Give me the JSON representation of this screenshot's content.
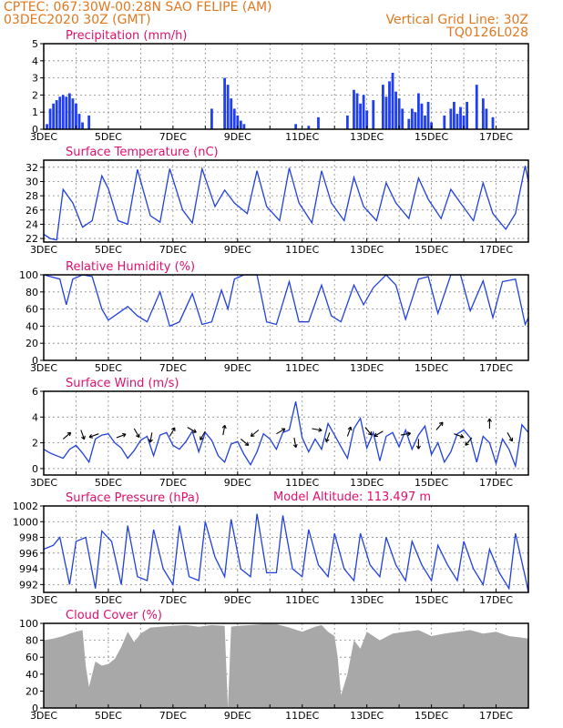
{
  "header": {
    "line1_left": "CPTEC:   067:30W-00:28N  SAO FELIPE (AM)",
    "line2_left": "03DEC2020 30Z (GMT)",
    "line1_right": "Vertical Grid Line: 30Z",
    "line2_right": "TQ0126L028"
  },
  "colors": {
    "header": "#e07820",
    "title": "#e0106e",
    "series": "#2040e0",
    "bars": "#1f3ff0",
    "cloud": "#a8a8a8"
  },
  "x_labels": [
    "3DEC",
    "5DEC",
    "7DEC",
    "9DEC",
    "11DEC",
    "13DEC",
    "15DEC",
    "17DEC"
  ],
  "extra": {
    "model_altitude": "Model Altitude: 113.497 m"
  },
  "chart_data": [
    {
      "type": "bar",
      "title": "Precipitation (mm/h)",
      "ylim": [
        0,
        5
      ],
      "yticks": [
        0,
        1,
        2,
        3,
        4,
        5
      ],
      "x": [
        3.1,
        3.2,
        3.3,
        3.4,
        3.5,
        3.6,
        3.7,
        3.8,
        3.9,
        4.0,
        4.1,
        4.2,
        4.4,
        8.2,
        8.6,
        8.7,
        8.8,
        8.9,
        9.0,
        9.1,
        9.2,
        10.8,
        11.2,
        11.5,
        12.4,
        12.6,
        12.7,
        12.8,
        12.9,
        13.0,
        13.2,
        13.5,
        13.6,
        13.7,
        13.8,
        13.9,
        14.0,
        14.1,
        14.3,
        14.4,
        14.5,
        14.6,
        14.7,
        14.8,
        14.9,
        15.0,
        15.4,
        15.6,
        15.7,
        15.8,
        15.9,
        16.0,
        16.1,
        16.4,
        16.6,
        16.7,
        16.9
      ],
      "values": [
        0.3,
        1.2,
        1.5,
        1.7,
        1.9,
        2.0,
        1.9,
        2.1,
        1.8,
        1.5,
        0.9,
        0.4,
        0.8,
        1.2,
        3.0,
        2.6,
        1.8,
        1.2,
        0.8,
        0.5,
        0.3,
        0.3,
        0.2,
        0.7,
        0.8,
        2.3,
        2.1,
        1.5,
        2.0,
        1.1,
        1.7,
        2.6,
        1.9,
        2.8,
        3.3,
        2.2,
        1.8,
        1.2,
        0.6,
        1.2,
        1.0,
        2.1,
        1.5,
        0.8,
        1.6,
        0.4,
        0.8,
        1.2,
        1.6,
        0.9,
        1.3,
        0.8,
        1.6,
        2.6,
        1.8,
        1.2,
        0.7
      ]
    },
    {
      "type": "line",
      "title": "Surface Temperature (nC)",
      "ylim": [
        21.5,
        33
      ],
      "yticks": [
        22,
        24,
        26,
        28,
        30,
        32
      ],
      "x": [
        3.0,
        3.2,
        3.4,
        3.6,
        3.9,
        4.2,
        4.5,
        4.8,
        5.0,
        5.3,
        5.6,
        5.9,
        6.3,
        6.6,
        6.9,
        7.3,
        7.6,
        7.9,
        8.3,
        8.6,
        8.9,
        9.3,
        9.6,
        9.9,
        10.3,
        10.6,
        10.9,
        11.3,
        11.6,
        11.9,
        12.3,
        12.6,
        12.9,
        13.3,
        13.6,
        13.9,
        14.3,
        14.6,
        14.9,
        15.3,
        15.6,
        15.9,
        16.3,
        16.6,
        16.9,
        17.3,
        17.6,
        17.9,
        18.0
      ],
      "values": [
        22.6,
        22.0,
        21.8,
        28.9,
        27.0,
        23.6,
        24.5,
        30.8,
        29.0,
        24.5,
        24.0,
        31.7,
        25.2,
        24.3,
        31.8,
        26.0,
        24.2,
        31.8,
        26.5,
        28.8,
        27.0,
        25.5,
        31.5,
        26.5,
        24.5,
        31.9,
        27.0,
        24.2,
        31.5,
        27.0,
        24.5,
        30.6,
        26.5,
        24.5,
        29.8,
        27.0,
        24.8,
        30.5,
        27.5,
        24.8,
        28.9,
        27.0,
        24.5,
        29.8,
        25.5,
        23.3,
        25.5,
        32.2,
        30.0
      ]
    },
    {
      "type": "line",
      "title": "Relative Humidity (%)",
      "ylim": [
        0,
        100
      ],
      "yticks": [
        0,
        20,
        40,
        60,
        80,
        100
      ],
      "x": [
        3.0,
        3.2,
        3.5,
        3.7,
        3.9,
        4.2,
        4.5,
        4.8,
        5.0,
        5.3,
        5.6,
        5.9,
        6.2,
        6.6,
        6.9,
        7.2,
        7.6,
        7.9,
        8.2,
        8.5,
        8.7,
        8.9,
        9.2,
        9.6,
        9.9,
        10.2,
        10.6,
        10.9,
        11.2,
        11.6,
        11.9,
        12.2,
        12.6,
        12.9,
        13.2,
        13.6,
        13.9,
        14.2,
        14.6,
        14.9,
        15.2,
        15.6,
        15.9,
        16.2,
        16.6,
        16.9,
        17.2,
        17.6,
        17.9,
        18.0
      ],
      "values": [
        100,
        98,
        95,
        65,
        95,
        100,
        98,
        60,
        47,
        55,
        63,
        52,
        45,
        80,
        40,
        45,
        78,
        42,
        45,
        82,
        60,
        95,
        100,
        100,
        45,
        42,
        92,
        45,
        45,
        88,
        52,
        45,
        88,
        65,
        85,
        100,
        88,
        48,
        95,
        98,
        55,
        100,
        100,
        58,
        93,
        50,
        92,
        95,
        42,
        50
      ]
    },
    {
      "type": "line",
      "title": "Surface Wind (m/s)",
      "ylim": [
        -0.5,
        6
      ],
      "yticks": [
        0,
        2,
        4,
        6
      ],
      "x": [
        3.0,
        3.2,
        3.4,
        3.6,
        3.8,
        4.0,
        4.2,
        4.4,
        4.6,
        4.8,
        5.0,
        5.2,
        5.4,
        5.6,
        5.8,
        6.0,
        6.2,
        6.4,
        6.6,
        6.8,
        7.0,
        7.2,
        7.4,
        7.6,
        7.8,
        8.0,
        8.2,
        8.4,
        8.6,
        8.8,
        9.0,
        9.2,
        9.4,
        9.6,
        9.8,
        10.0,
        10.2,
        10.4,
        10.6,
        10.8,
        11.0,
        11.2,
        11.4,
        11.6,
        11.8,
        12.0,
        12.2,
        12.4,
        12.6,
        12.8,
        13.0,
        13.2,
        13.4,
        13.6,
        13.8,
        14.0,
        14.2,
        14.4,
        14.6,
        14.8,
        15.0,
        15.2,
        15.4,
        15.6,
        15.8,
        16.0,
        16.2,
        16.4,
        16.6,
        16.8,
        17.0,
        17.2,
        17.4,
        17.6,
        17.8,
        18.0
      ],
      "values": [
        1.5,
        1.2,
        1.0,
        0.8,
        1.5,
        1.8,
        1.2,
        0.5,
        2.3,
        2.6,
        2.7,
        2.0,
        1.6,
        0.8,
        1.4,
        2.2,
        2.5,
        1.0,
        2.6,
        2.8,
        1.8,
        1.5,
        2.1,
        2.9,
        1.3,
        2.8,
        2.2,
        1.0,
        0.5,
        1.9,
        2.1,
        1.1,
        0.3,
        1.3,
        2.7,
        2.3,
        1.5,
        2.8,
        3.0,
        5.2,
        2.4,
        1.3,
        2.3,
        1.5,
        3.5,
        2.6,
        1.7,
        0.8,
        3.1,
        3.9,
        1.6,
        2.8,
        0.6,
        2.5,
        2.8,
        1.7,
        3.0,
        1.5,
        2.6,
        3.3,
        1.1,
        2.0,
        0.5,
        1.3,
        2.7,
        3.0,
        2.4,
        0.5,
        2.5,
        2.0,
        0.4,
        2.3,
        1.5,
        0.2,
        3.4,
        2.8
      ]
    },
    {
      "type": "line",
      "title": "Surface Pressure (hPa)",
      "ylim": [
        991,
        1002
      ],
      "yticks": [
        992,
        994,
        996,
        998,
        1000,
        1002
      ],
      "x": [
        3.0,
        3.3,
        3.5,
        3.8,
        4.0,
        4.3,
        4.6,
        4.8,
        5.1,
        5.4,
        5.6,
        5.9,
        6.2,
        6.4,
        6.7,
        7.0,
        7.2,
        7.5,
        7.8,
        8.0,
        8.3,
        8.6,
        8.8,
        9.1,
        9.4,
        9.6,
        9.9,
        10.2,
        10.4,
        10.7,
        11.0,
        11.2,
        11.5,
        11.8,
        12.0,
        12.3,
        12.6,
        12.8,
        13.1,
        13.4,
        13.6,
        13.9,
        14.2,
        14.4,
        14.7,
        15.0,
        15.2,
        15.5,
        15.8,
        16.0,
        16.3,
        16.6,
        16.8,
        17.1,
        17.4,
        17.6,
        17.9,
        18.0
      ],
      "values": [
        996.5,
        997.0,
        998.0,
        992.0,
        997.5,
        998.0,
        991.5,
        998.8,
        997.5,
        992.0,
        999.5,
        993.0,
        992.5,
        999.0,
        994.0,
        992.0,
        999.5,
        993.0,
        992.5,
        1000.0,
        995.5,
        993.0,
        1000.3,
        994.0,
        993.0,
        1001.0,
        993.5,
        993.5,
        1000.8,
        994.0,
        993.0,
        999.0,
        994.5,
        993.0,
        998.5,
        994.0,
        992.5,
        998.5,
        994.5,
        993.0,
        998.0,
        994.5,
        992.5,
        997.5,
        994.5,
        992.5,
        997.0,
        994.5,
        992.5,
        997.5,
        994.0,
        992.0,
        996.5,
        993.5,
        991.5,
        998.5,
        993.0,
        991.0
      ]
    },
    {
      "type": "area",
      "title": "Cloud Cover (%)",
      "ylim": [
        0,
        100
      ],
      "yticks": [
        0,
        20,
        40,
        60,
        80,
        100
      ],
      "x": [
        3.0,
        3.3,
        3.6,
        3.8,
        4.0,
        4.2,
        4.3,
        4.4,
        4.6,
        4.8,
        5.0,
        5.2,
        5.4,
        5.6,
        5.8,
        6.0,
        6.3,
        6.6,
        7.0,
        7.4,
        7.8,
        8.2,
        8.6,
        8.7,
        8.8,
        9.0,
        9.4,
        9.8,
        10.2,
        10.6,
        11.0,
        11.4,
        11.6,
        11.8,
        12.0,
        12.1,
        12.2,
        12.4,
        12.6,
        12.8,
        13.0,
        13.4,
        13.8,
        14.2,
        14.6,
        15.0,
        15.4,
        15.8,
        16.2,
        16.6,
        17.0,
        17.4,
        17.8,
        18.0
      ],
      "values": [
        80,
        82,
        85,
        88,
        90,
        92,
        50,
        25,
        55,
        50,
        52,
        58,
        72,
        90,
        78,
        88,
        95,
        96,
        97,
        98,
        96,
        98,
        97,
        0,
        96,
        97,
        98,
        99,
        99,
        95,
        90,
        96,
        98,
        90,
        85,
        60,
        15,
        40,
        80,
        70,
        90,
        80,
        88,
        90,
        92,
        85,
        88,
        90,
        92,
        88,
        90,
        85,
        83,
        82
      ]
    }
  ]
}
